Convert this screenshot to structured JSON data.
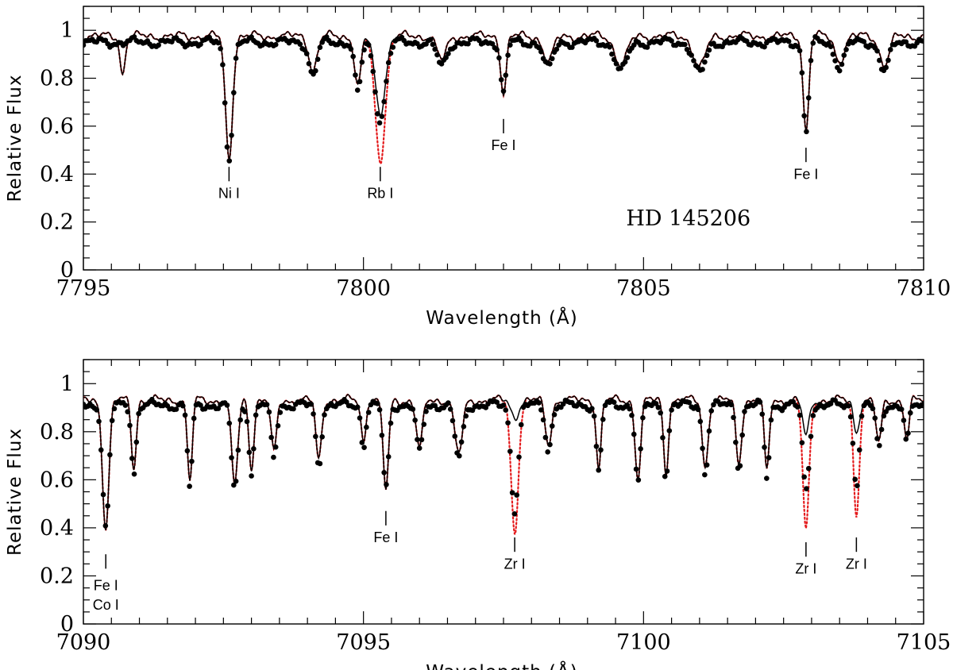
{
  "chart_data": [
    {
      "type": "line",
      "xlabel": "Wavelength (Å)",
      "ylabel": "Relative Flux",
      "xlim": [
        7795,
        7810
      ],
      "ylim": [
        0,
        1.1
      ],
      "xticks": [
        7795,
        7800,
        7805,
        7810
      ],
      "yticks": [
        0,
        0.2,
        0.4,
        0.6,
        0.8,
        1
      ],
      "star_name": "HD 145206",
      "star_name_x": 7805.8,
      "star_name_y": 0.215,
      "continuum_observed": 0.95,
      "continuum_synthetic": 0.975,
      "lines": [
        {
          "label": "Ni I",
          "wavelength": 7797.6,
          "depth_observed": 0.47,
          "depth_synthetic": 0.47,
          "width": 0.09,
          "label_y": 0.32,
          "tick_y": [
            0.37,
            0.43
          ]
        },
        {
          "label": "Rb I",
          "wavelength": 7800.3,
          "depth_observed": 0.63,
          "depth_synthetic": 0.66,
          "depth_red": 0.46,
          "width": 0.13,
          "label_y": 0.32,
          "tick_y": [
            0.37,
            0.43
          ]
        },
        {
          "label": "Fe I",
          "wavelength": 7802.5,
          "depth_observed": 0.74,
          "depth_synthetic": 0.74,
          "width": 0.07,
          "label_y": 0.52,
          "tick_y": [
            0.57,
            0.63
          ]
        },
        {
          "label": "Fe I",
          "wavelength": 7807.9,
          "depth_observed": 0.58,
          "depth_synthetic": 0.58,
          "width": 0.07,
          "label_y": 0.4,
          "tick_y": [
            0.45,
            0.51
          ]
        }
      ],
      "other_features": [
        {
          "wavelength": 7799.1,
          "depth": 0.86,
          "width": 0.1
        },
        {
          "wavelength": 7799.9,
          "depth": 0.79,
          "width": 0.08
        },
        {
          "wavelength": 7795.7,
          "depth": 0.84,
          "width": 0.06,
          "synthetic_only": true
        },
        {
          "wavelength": 7801.4,
          "depth": 0.9,
          "width": 0.12
        },
        {
          "wavelength": 7803.3,
          "depth": 0.89,
          "width": 0.12
        },
        {
          "wavelength": 7804.6,
          "depth": 0.88,
          "width": 0.15
        },
        {
          "wavelength": 7806.0,
          "depth": 0.87,
          "width": 0.15
        },
        {
          "wavelength": 7808.5,
          "depth": 0.9,
          "width": 0.12
        },
        {
          "wavelength": 7809.3,
          "depth": 0.88,
          "width": 0.12
        }
      ]
    },
    {
      "type": "line",
      "xlabel": "Wavelength (Å)",
      "ylabel": "Relative Flux",
      "xlim": [
        7090,
        7105
      ],
      "ylim": [
        0,
        1.1
      ],
      "xticks": [
        7090,
        7095,
        7100,
        7105
      ],
      "yticks": [
        0,
        0.2,
        0.4,
        0.6,
        0.8,
        1
      ],
      "continuum_observed": 0.91,
      "continuum_synthetic": 0.93,
      "lines": [
        {
          "label": "Fe I",
          "label2": "Co I",
          "wavelength": 7090.4,
          "depth_observed": 0.4,
          "depth_synthetic": 0.4,
          "width": 0.08,
          "label_y": 0.16,
          "label2_y": 0.08,
          "tick_y": [
            0.23,
            0.29
          ]
        },
        {
          "label": "Fe I",
          "wavelength": 7095.4,
          "depth_observed": 0.56,
          "depth_synthetic": 0.56,
          "width": 0.07,
          "label_y": 0.36,
          "tick_y": [
            0.41,
            0.47
          ]
        },
        {
          "label": "Zr I",
          "wavelength": 7097.7,
          "depth_observed": 0.48,
          "depth_synthetic": 0.86,
          "depth_red": 0.38,
          "width": 0.09,
          "label_y": 0.25,
          "tick_y": [
            0.3,
            0.36
          ]
        },
        {
          "label": "Zr I",
          "wavelength": 7102.9,
          "depth_observed": 0.55,
          "depth_synthetic": 0.78,
          "depth_red": 0.39,
          "width": 0.08,
          "label_y": 0.23,
          "tick_y": [
            0.28,
            0.34
          ]
        },
        {
          "label": "Zr I",
          "wavelength": 7103.8,
          "depth_observed": 0.58,
          "depth_synthetic": 0.8,
          "depth_red": 0.45,
          "width": 0.07,
          "label_y": 0.25,
          "tick_y": [
            0.3,
            0.36
          ]
        }
      ],
      "other_features": [
        {
          "wavelength": 7090.9,
          "depth": 0.72,
          "width": 0.06
        },
        {
          "wavelength": 7091.9,
          "depth": 0.66,
          "width": 0.06
        },
        {
          "wavelength": 7092.7,
          "depth": 0.65,
          "width": 0.08
        },
        {
          "wavelength": 7093.0,
          "depth": 0.72,
          "width": 0.06
        },
        {
          "wavelength": 7093.4,
          "depth": 0.78,
          "width": 0.07
        },
        {
          "wavelength": 7094.2,
          "depth": 0.75,
          "width": 0.07
        },
        {
          "wavelength": 7095.0,
          "depth": 0.83,
          "width": 0.06
        },
        {
          "wavelength": 7096.0,
          "depth": 0.8,
          "width": 0.08
        },
        {
          "wavelength": 7096.7,
          "depth": 0.78,
          "width": 0.1
        },
        {
          "wavelength": 7098.3,
          "depth": 0.82,
          "width": 0.08
        },
        {
          "wavelength": 7099.2,
          "depth": 0.72,
          "width": 0.06
        },
        {
          "wavelength": 7099.9,
          "depth": 0.68,
          "width": 0.07
        },
        {
          "wavelength": 7100.4,
          "depth": 0.7,
          "width": 0.06
        },
        {
          "wavelength": 7101.1,
          "depth": 0.72,
          "width": 0.07
        },
        {
          "wavelength": 7101.7,
          "depth": 0.74,
          "width": 0.07
        },
        {
          "wavelength": 7102.2,
          "depth": 0.7,
          "width": 0.06
        },
        {
          "wavelength": 7104.2,
          "depth": 0.82,
          "width": 0.07
        },
        {
          "wavelength": 7104.7,
          "depth": 0.84,
          "width": 0.06
        }
      ]
    }
  ],
  "colors": {
    "observed": "#000000",
    "synthetic": "#000000",
    "red_synthetic": "#e41a1c"
  }
}
